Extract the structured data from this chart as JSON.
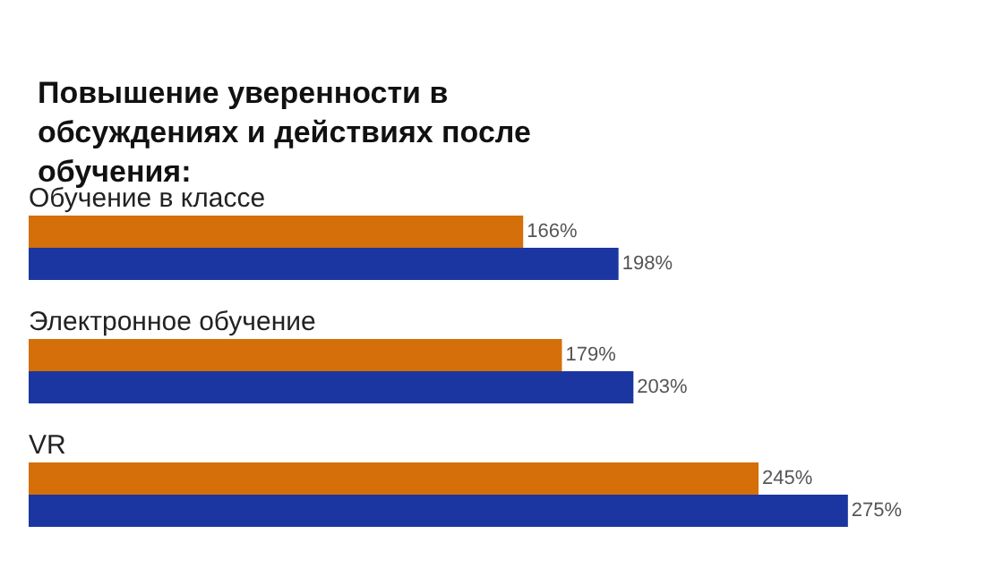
{
  "chart_data": {
    "type": "bar",
    "orientation": "horizontal",
    "title": "Повышение уверенности в обсуждениях и действиях после обучения:",
    "categories": [
      "Обучение в классе",
      "Электронное обучение",
      "VR"
    ],
    "series": [
      {
        "color": "#d46f0a",
        "values": [
          166,
          179,
          245
        ],
        "value_labels": [
          "166%",
          "179%",
          "245%"
        ]
      },
      {
        "color": "#1b36a0",
        "values": [
          198,
          203,
          275
        ],
        "value_labels": [
          "198%",
          "203%",
          "275%"
        ]
      }
    ]
  }
}
